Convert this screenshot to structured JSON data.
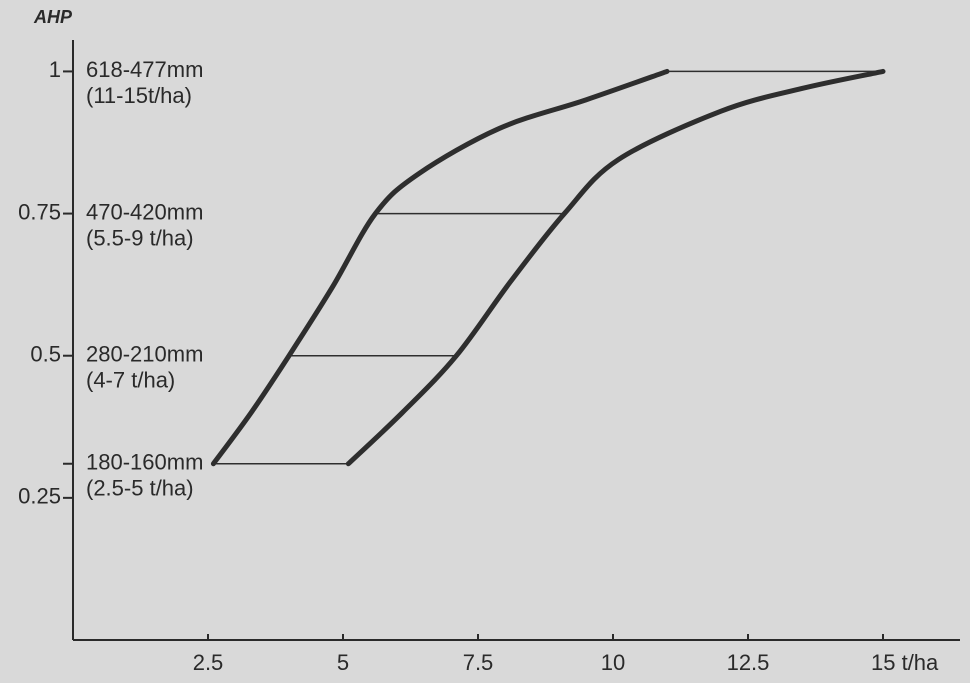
{
  "chart_data": {
    "type": "range-curves",
    "y_label": "AHP",
    "xlim": [
      0,
      16.5
    ],
    "ylim": [
      0,
      1.05
    ],
    "xticks": [
      2.5,
      5,
      7.5,
      10,
      12.5,
      {
        "value": 15,
        "label": "15 t/ha"
      }
    ],
    "yticks": [
      {
        "value": 0.31,
        "label": null
      },
      0.25,
      0.5,
      0.75,
      1
    ],
    "color": "#2e2e2e",
    "curves": [
      {
        "x": [
          2.6,
          3.3,
          4.0,
          4.8,
          5.6,
          6.4,
          7.9,
          9.5,
          11.0
        ],
        "y": [
          0.31,
          0.4,
          0.5,
          0.62,
          0.75,
          0.82,
          0.9,
          0.95,
          1.0
        ]
      },
      {
        "x": [
          5.1,
          6.1,
          7.1,
          8.1,
          9.1,
          10.1,
          12.0,
          13.5,
          15.0
        ],
        "y": [
          0.31,
          0.4,
          0.5,
          0.63,
          0.75,
          0.845,
          0.93,
          0.97,
          1.0
        ]
      }
    ],
    "ranges": [
      {
        "y": 1,
        "x": [
          11.0,
          15.0
        ],
        "labels": [
          "618-477mm",
          "(11-15t/ha)"
        ]
      },
      {
        "y": 0.75,
        "x": [
          5.6,
          9.1
        ],
        "labels": [
          "470-420mm",
          "(5.5-9 t/ha)"
        ]
      },
      {
        "y": 0.5,
        "x": [
          4.0,
          7.1
        ],
        "labels": [
          "280-210mm",
          "(4-7 t/ha)"
        ]
      },
      {
        "y": 0.31,
        "x": [
          2.6,
          5.1
        ],
        "labels": [
          "180-160mm",
          "(2.5-5 t/ha)"
        ]
      }
    ]
  }
}
